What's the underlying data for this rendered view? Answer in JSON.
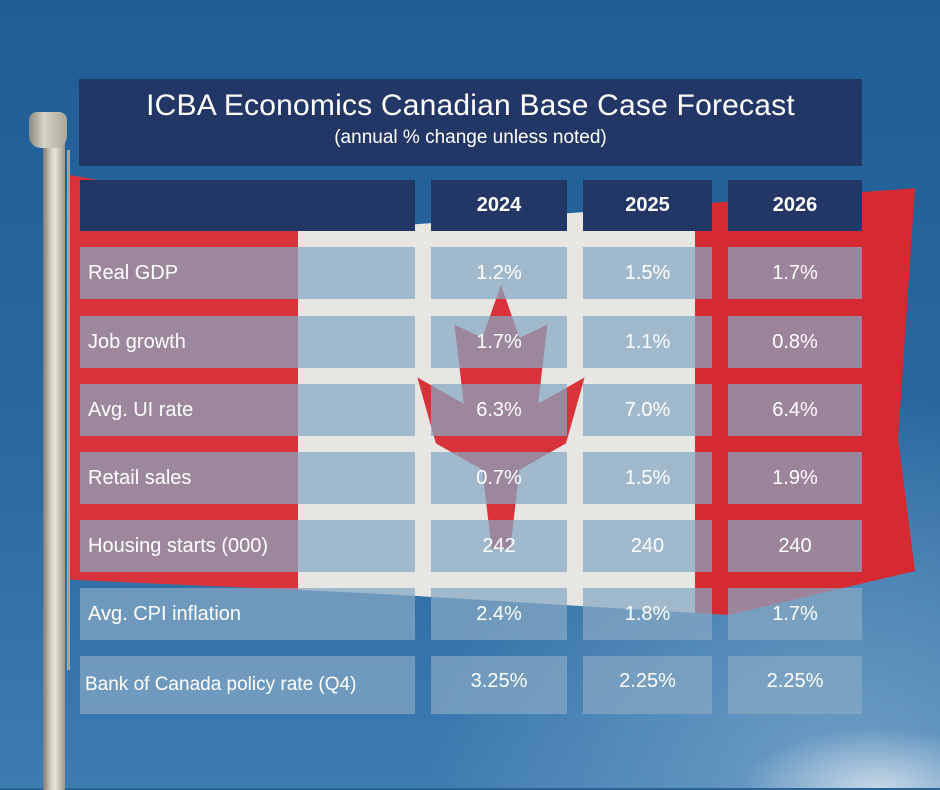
{
  "title": "ICBA Economics Canadian Base Case Forecast",
  "subtitle": "(annual % change unless noted)",
  "table": {
    "columns": [
      "",
      "2024",
      "2025",
      "2026"
    ],
    "rows": [
      {
        "label": "Real GDP",
        "values": [
          "1.2%",
          "1.5%",
          "1.7%"
        ]
      },
      {
        "label": "Job growth",
        "values": [
          "1.7%",
          "1.1%",
          "0.8%"
        ]
      },
      {
        "label": "Avg. UI rate",
        "values": [
          "6.3%",
          "7.0%",
          "6.4%"
        ]
      },
      {
        "label": "Retail sales",
        "values": [
          "0.7%",
          "1.5%",
          "1.9%"
        ]
      },
      {
        "label": "Housing starts (000)",
        "values": [
          "242",
          "240",
          "240"
        ]
      },
      {
        "label": "Avg. CPI inflation",
        "values": [
          "2.4%",
          "1.8%",
          "1.7%"
        ]
      },
      {
        "label": "Bank of Canada policy rate (Q4)",
        "values": [
          "3.25%",
          "2.25%",
          "2.25%"
        ]
      }
    ]
  },
  "colors": {
    "header": "#233766",
    "cell": "#87a8c4",
    "sky": "#2a6496",
    "flag_red": "#d8323b"
  }
}
